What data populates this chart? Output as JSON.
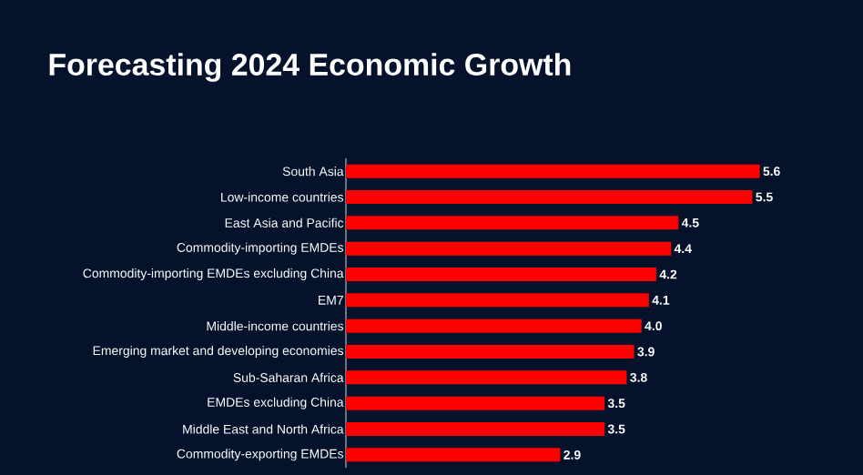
{
  "chart_data": {
    "type": "bar",
    "orientation": "horizontal",
    "title": "Forecasting 2024 Economic Growth",
    "categories": [
      "South Asia",
      "Low-income countries",
      "East Asia and Pacific",
      "Commodity-importing EMDEs",
      "Commodity-importing EMDEs excluding China",
      "EM7",
      "Middle-income countries",
      "Emerging market and developing economies",
      "Sub-Saharan Africa",
      "EMDEs excluding China",
      "Middle East and North Africa",
      "Commodity-exporting EMDEs"
    ],
    "values": [
      5.6,
      5.5,
      4.5,
      4.4,
      4.2,
      4.1,
      4.0,
      3.9,
      3.8,
      3.5,
      3.5,
      2.9
    ],
    "value_labels": [
      "5.6",
      "5.5",
      "4.5",
      "4.4",
      "4.2",
      "4.1",
      "4.0",
      "3.9",
      "3.8",
      "3.5",
      "3.5",
      "2.9"
    ],
    "color": "#ff0000"
  }
}
